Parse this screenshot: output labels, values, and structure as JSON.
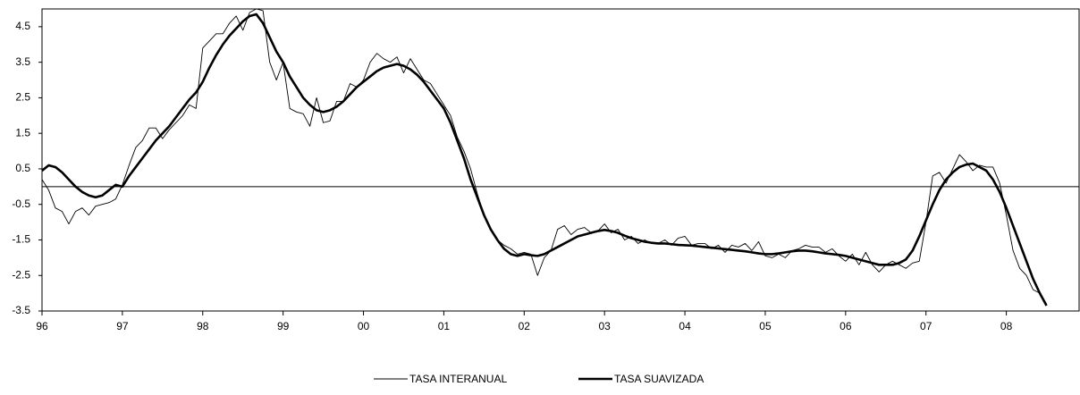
{
  "chart_data": {
    "type": "line",
    "categories": [
      "96",
      null,
      null,
      null,
      null,
      null,
      null,
      null,
      null,
      null,
      null,
      null,
      "97",
      null,
      null,
      null,
      null,
      null,
      null,
      null,
      null,
      null,
      null,
      null,
      "98",
      null,
      null,
      null,
      null,
      null,
      null,
      null,
      null,
      null,
      null,
      null,
      "99",
      null,
      null,
      null,
      null,
      null,
      null,
      null,
      null,
      null,
      null,
      null,
      "00",
      null,
      null,
      null,
      null,
      null,
      null,
      null,
      null,
      null,
      null,
      null,
      "01",
      null,
      null,
      null,
      null,
      null,
      null,
      null,
      null,
      null,
      null,
      null,
      "02",
      null,
      null,
      null,
      null,
      null,
      null,
      null,
      null,
      null,
      null,
      null,
      "03",
      null,
      null,
      null,
      null,
      null,
      null,
      null,
      null,
      null,
      null,
      null,
      "04",
      null,
      null,
      null,
      null,
      null,
      null,
      null,
      null,
      null,
      null,
      null,
      "05",
      null,
      null,
      null,
      null,
      null,
      null,
      null,
      null,
      null,
      null,
      null,
      "06",
      null,
      null,
      null,
      null,
      null,
      null,
      null,
      null,
      null,
      null,
      null,
      "07",
      null,
      null,
      null,
      null,
      null,
      null,
      null,
      null,
      null,
      null,
      null,
      "08",
      null,
      null,
      null,
      null,
      null,
      null,
      null,
      null,
      null,
      null,
      null
    ],
    "series": [
      {
        "name": "TASA INTERANUAL",
        "color": "#000000",
        "values": [
          0.2,
          -0.1,
          -0.6,
          -0.7,
          -1.05,
          -0.7,
          -0.6,
          -0.8,
          -0.55,
          -0.5,
          -0.45,
          -0.35,
          0.05,
          0.6,
          1.1,
          1.3,
          1.65,
          1.65,
          1.35,
          1.6,
          1.8,
          2.0,
          2.3,
          2.2,
          3.9,
          4.1,
          4.3,
          4.3,
          4.6,
          4.8,
          4.4,
          4.9,
          5.0,
          4.95,
          3.5,
          3.0,
          3.5,
          2.2,
          2.1,
          2.05,
          1.7,
          2.5,
          1.8,
          1.85,
          2.4,
          2.4,
          2.9,
          2.8,
          3.0,
          3.5,
          3.75,
          3.6,
          3.5,
          3.65,
          3.2,
          3.6,
          3.3,
          3.0,
          2.9,
          2.6,
          2.3,
          2.0,
          1.4,
          1.0,
          0.5,
          -0.2,
          -0.8,
          -1.2,
          -1.5,
          -1.65,
          -1.75,
          -1.9,
          -1.85,
          -1.9,
          -2.5,
          -2.0,
          -1.8,
          -1.2,
          -1.1,
          -1.35,
          -1.2,
          -1.15,
          -1.3,
          -1.25,
          -1.05,
          -1.3,
          -1.2,
          -1.5,
          -1.4,
          -1.6,
          -1.5,
          -1.6,
          -1.6,
          -1.5,
          -1.65,
          -1.45,
          -1.4,
          -1.65,
          -1.6,
          -1.6,
          -1.75,
          -1.65,
          -1.85,
          -1.65,
          -1.7,
          -1.6,
          -1.8,
          -1.55,
          -1.95,
          -2.0,
          -1.9,
          -2.0,
          -1.8,
          -1.75,
          -1.65,
          -1.7,
          -1.7,
          -1.85,
          -1.75,
          -1.95,
          -2.1,
          -1.9,
          -2.2,
          -1.85,
          -2.2,
          -2.4,
          -2.2,
          -2.1,
          -2.2,
          -2.3,
          -2.15,
          -2.1,
          -1.0,
          0.3,
          0.4,
          0.1,
          0.5,
          0.9,
          0.7,
          0.45,
          0.6,
          0.55,
          0.55,
          0.1,
          -0.8,
          -1.8,
          -2.3,
          -2.5,
          -2.9,
          -3.0,
          -3.3,
          null,
          null,
          null,
          null,
          null
        ]
      },
      {
        "name": "TASA SUAVIZADA",
        "color": "#000000",
        "values": [
          0.45,
          0.6,
          0.55,
          0.4,
          0.2,
          0.0,
          -0.15,
          -0.25,
          -0.3,
          -0.25,
          -0.1,
          0.05,
          0.0,
          0.3,
          0.55,
          0.8,
          1.05,
          1.3,
          1.5,
          1.7,
          1.95,
          2.2,
          2.45,
          2.65,
          2.95,
          3.35,
          3.7,
          4.0,
          4.25,
          4.45,
          4.65,
          4.8,
          4.85,
          4.6,
          4.2,
          3.8,
          3.5,
          3.1,
          2.8,
          2.5,
          2.3,
          2.15,
          2.1,
          2.15,
          2.25,
          2.4,
          2.6,
          2.8,
          2.95,
          3.1,
          3.25,
          3.35,
          3.4,
          3.45,
          3.4,
          3.3,
          3.15,
          2.95,
          2.7,
          2.45,
          2.2,
          1.8,
          1.3,
          0.8,
          0.2,
          -0.3,
          -0.8,
          -1.2,
          -1.5,
          -1.75,
          -1.9,
          -1.95,
          -1.9,
          -1.93,
          -1.95,
          -1.9,
          -1.8,
          -1.7,
          -1.6,
          -1.5,
          -1.4,
          -1.35,
          -1.3,
          -1.25,
          -1.22,
          -1.25,
          -1.3,
          -1.38,
          -1.45,
          -1.5,
          -1.55,
          -1.58,
          -1.6,
          -1.6,
          -1.62,
          -1.64,
          -1.65,
          -1.66,
          -1.68,
          -1.7,
          -1.72,
          -1.74,
          -1.76,
          -1.78,
          -1.8,
          -1.82,
          -1.85,
          -1.88,
          -1.9,
          -1.9,
          -1.88,
          -1.85,
          -1.82,
          -1.8,
          -1.8,
          -1.82,
          -1.85,
          -1.88,
          -1.9,
          -1.92,
          -1.95,
          -2.0,
          -2.05,
          -2.1,
          -2.15,
          -2.2,
          -2.2,
          -2.2,
          -2.15,
          -2.05,
          -1.8,
          -1.4,
          -0.95,
          -0.5,
          -0.1,
          0.2,
          0.4,
          0.55,
          0.62,
          0.65,
          0.55,
          0.45,
          0.2,
          -0.15,
          -0.6,
          -1.1,
          -1.6,
          -2.1,
          -2.6,
          -3.0,
          -3.35,
          null,
          null,
          null,
          null,
          null
        ]
      }
    ],
    "ylim": [
      -3.5,
      5.0
    ],
    "yticks": [
      -3.5,
      -2.5,
      -1.5,
      -0.5,
      0.5,
      1.5,
      2.5,
      3.5,
      4.5
    ],
    "grid": false
  }
}
